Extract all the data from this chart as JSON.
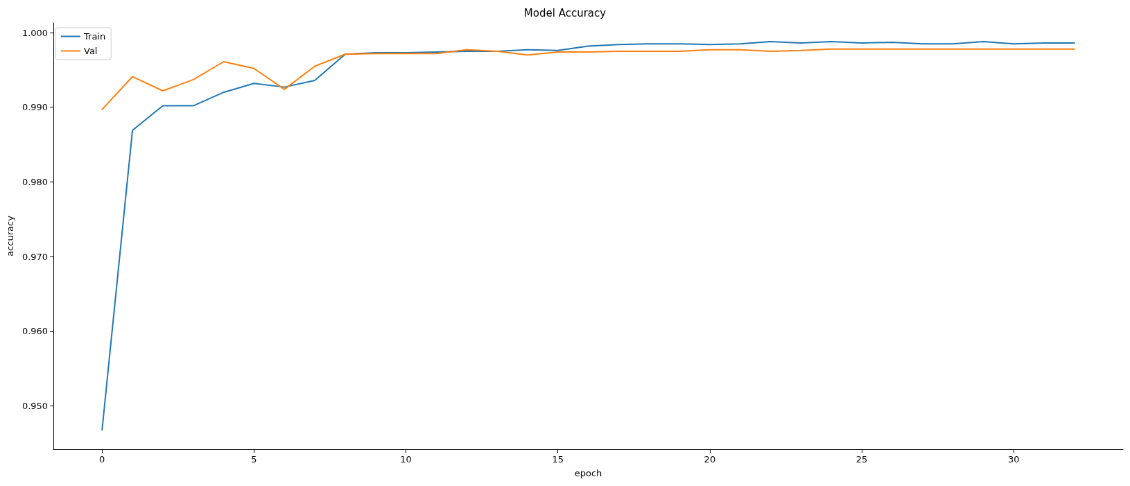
{
  "chart_data": {
    "type": "line",
    "title": "Model Accuracy",
    "xlabel": "epoch",
    "ylabel": "accuracy",
    "x": [
      0,
      1,
      2,
      3,
      4,
      5,
      6,
      7,
      8,
      9,
      10,
      11,
      12,
      13,
      14,
      15,
      16,
      17,
      18,
      19,
      20,
      21,
      22,
      23,
      24,
      25,
      26,
      27,
      28,
      29,
      30,
      31,
      32
    ],
    "series": [
      {
        "name": "Train",
        "color": "#1f77b4",
        "values": [
          0.9468,
          0.9869,
          0.9902,
          0.9902,
          0.992,
          0.9932,
          0.9927,
          0.9936,
          0.9971,
          0.9973,
          0.9973,
          0.9974,
          0.9975,
          0.9975,
          0.9977,
          0.9976,
          0.9982,
          0.9984,
          0.9985,
          0.9985,
          0.9984,
          0.9985,
          0.9988,
          0.9986,
          0.9988,
          0.9986,
          0.9987,
          0.9985,
          0.9985,
          0.9988,
          0.9985,
          0.9986,
          0.9986
        ]
      },
      {
        "name": "Val",
        "color": "#ff7f0e",
        "values": [
          0.9897,
          0.9941,
          0.9922,
          0.9937,
          0.9961,
          0.9952,
          0.9924,
          0.9955,
          0.9971,
          0.9972,
          0.9972,
          0.9972,
          0.9977,
          0.9975,
          0.997,
          0.9974,
          0.9974,
          0.9975,
          0.9975,
          0.9975,
          0.9977,
          0.9977,
          0.9975,
          0.9976,
          0.9978,
          0.9978,
          0.9978,
          0.9978,
          0.9978,
          0.9978,
          0.9978,
          0.9978,
          0.9978
        ]
      }
    ],
    "xlim": [
      -1.6,
      33.6
    ],
    "xticks": [
      0,
      5,
      10,
      15,
      20,
      25,
      30
    ],
    "ylim": [
      0.9442,
      1.0013
    ],
    "yticks": [
      {
        "value": 0.95,
        "label": "0.950"
      },
      {
        "value": 0.96,
        "label": "0.960"
      },
      {
        "value": 0.97,
        "label": "0.970"
      },
      {
        "value": 0.98,
        "label": "0.980"
      },
      {
        "value": 0.99,
        "label": "0.990"
      },
      {
        "value": 1,
        "label": "1.000"
      }
    ],
    "legend": "top left",
    "grid": false,
    "marker": "none",
    "line_style": "solid"
  }
}
